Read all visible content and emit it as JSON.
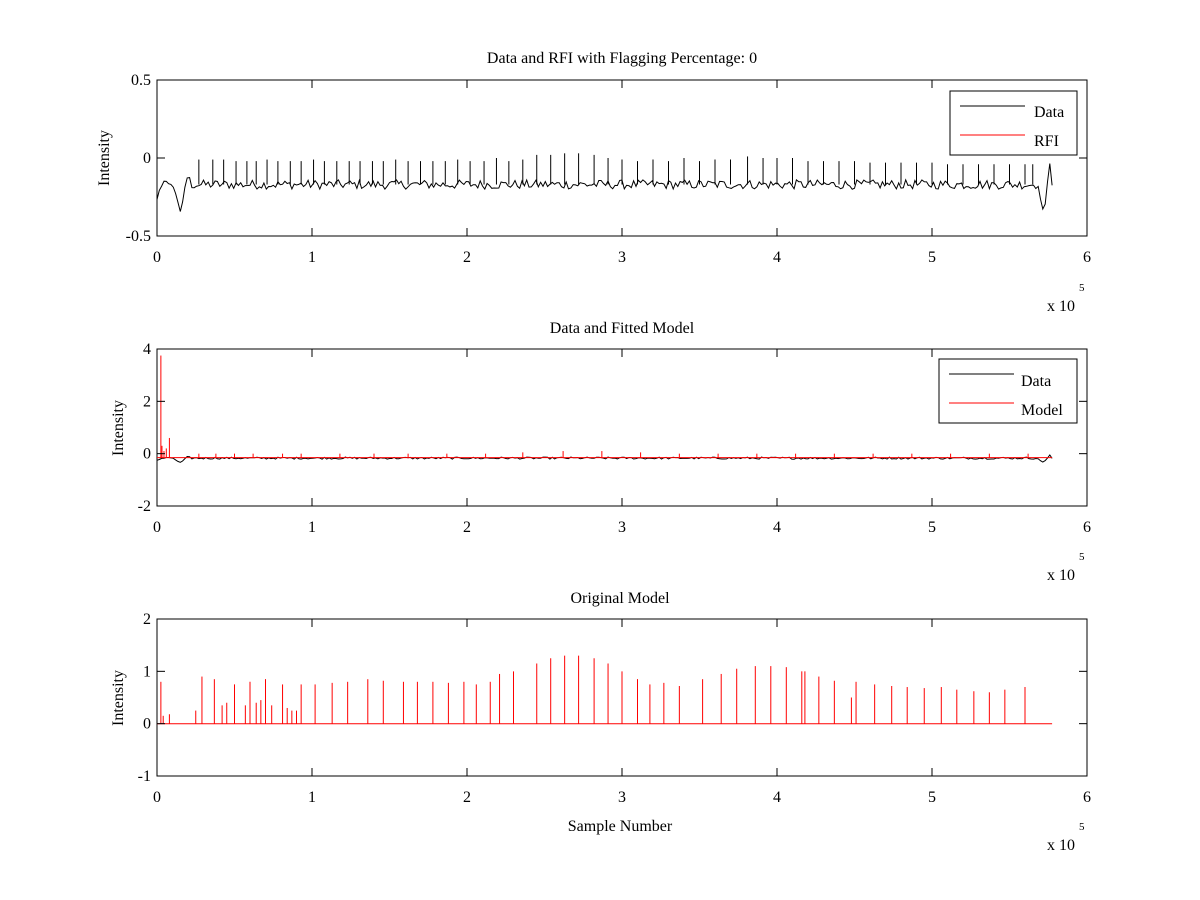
{
  "chart_data": [
    {
      "type": "line",
      "title": "Data and RFI with Flagging Percentage: 0",
      "xlabel": "",
      "ylabel": "Intensity",
      "xlim": [
        0,
        600000
      ],
      "ylim": [
        -0.5,
        0.5
      ],
      "xticks": [
        0,
        1,
        2,
        3,
        4,
        5,
        6
      ],
      "yticks": [
        -0.5,
        0,
        0.5
      ],
      "x_multiplier_base": "x 10",
      "x_multiplier_exp": "5",
      "legend": "top-right",
      "series": [
        {
          "name": "Data",
          "color": "#000000",
          "baseline": -0.17,
          "noise": 0.03,
          "spike_x": [
            27000,
            36000,
            43000,
            51000,
            58000,
            64000,
            71000,
            78000,
            86000,
            93000,
            101000,
            108000,
            116000,
            124000,
            131000,
            139000,
            146000,
            154000,
            162000,
            170000,
            178000,
            186000,
            194000,
            202000,
            211000,
            219000,
            227000,
            236000,
            245000,
            254000,
            263000,
            272000,
            282000,
            291000,
            300000,
            310000,
            320000,
            330000,
            340000,
            350000,
            360000,
            370000,
            381000,
            391000,
            400000,
            410000,
            420000,
            430000,
            440000,
            450000,
            460000,
            470000,
            480000,
            490000,
            500000,
            510000,
            520000,
            530000,
            540000,
            550000,
            560000,
            565000
          ],
          "spike_y": [
            -0.01,
            -0.01,
            -0.01,
            -0.02,
            -0.02,
            -0.02,
            -0.01,
            -0.02,
            -0.02,
            -0.02,
            -0.01,
            -0.02,
            -0.02,
            -0.02,
            -0.02,
            -0.02,
            -0.02,
            -0.01,
            -0.02,
            -0.02,
            -0.02,
            -0.02,
            -0.01,
            -0.02,
            -0.02,
            0.0,
            -0.02,
            -0.01,
            0.02,
            0.02,
            0.03,
            0.03,
            0.02,
            0.0,
            -0.01,
            -0.02,
            -0.01,
            -0.02,
            0.0,
            -0.02,
            -0.01,
            -0.01,
            0.01,
            0.0,
            0.0,
            0.0,
            -0.02,
            -0.02,
            -0.02,
            -0.02,
            -0.03,
            -0.03,
            -0.03,
            -0.03,
            -0.03,
            -0.04,
            -0.04,
            -0.04,
            -0.04,
            -0.04,
            -0.04,
            -0.04
          ],
          "dips": [
            {
              "x": [
                0,
                4000,
                10000,
                15000,
                20000,
                22000
              ],
              "y": [
                -0.26,
                -0.16,
                -0.16,
                -0.35,
                -0.1,
                -0.17
              ]
            },
            {
              "x": [
                568000,
                572000,
                576000,
                578000
              ],
              "y": [
                -0.17,
                -0.36,
                -0.05,
                -0.2
              ]
            }
          ],
          "x_end": 578000
        },
        {
          "name": "RFI",
          "color": "#ff0000"
        }
      ]
    },
    {
      "type": "line",
      "title": "Data and Fitted Model",
      "xlabel": "",
      "ylabel": "Intensity",
      "xlim": [
        0,
        600000
      ],
      "ylim": [
        -2,
        4
      ],
      "xticks": [
        0,
        1,
        2,
        3,
        4,
        5,
        6
      ],
      "yticks": [
        -2,
        0,
        2,
        4
      ],
      "x_multiplier_base": "x 10",
      "x_multiplier_exp": "5",
      "legend": "top-right",
      "series": [
        {
          "name": "Data",
          "color": "#000000",
          "baseline": -0.17,
          "noise": 0.04,
          "dips": [
            {
              "x": [
                0,
                4000,
                10000,
                15000,
                20000,
                22000
              ],
              "y": [
                -0.26,
                -0.16,
                -0.16,
                -0.35,
                -0.1,
                -0.17
              ]
            },
            {
              "x": [
                568000,
                572000,
                576000,
                578000
              ],
              "y": [
                -0.17,
                -0.36,
                -0.05,
                -0.2
              ]
            }
          ],
          "x_end": 578000
        },
        {
          "name": "Model",
          "color": "#ff0000",
          "baseline": -0.15,
          "spike_x": [
            2500,
            3200,
            4500,
            6000,
            8000,
            27000,
            38000,
            50000,
            62000,
            81000,
            93000,
            118000,
            140000,
            162000,
            187000,
            212000,
            236000,
            262000,
            287000,
            312000,
            337000,
            362000,
            387000,
            412000,
            437000,
            462000,
            487000,
            512000,
            537000,
            562000
          ],
          "spike_y": [
            3.75,
            0.3,
            0.1,
            0.2,
            0.6,
            0.0,
            0.0,
            0.0,
            0.0,
            0.0,
            0.0,
            0.0,
            0.0,
            0.0,
            0.0,
            0.0,
            0.05,
            0.1,
            0.1,
            0.05,
            0.0,
            0.0,
            0.0,
            0.0,
            0.0,
            0.0,
            0.0,
            0.0,
            0.0,
            0.0
          ],
          "x_end": 578000
        }
      ]
    },
    {
      "type": "line",
      "title": "Original Model",
      "xlabel": "Sample Number",
      "ylabel": "Intensity",
      "xlim": [
        0,
        600000
      ],
      "ylim": [
        -1,
        2
      ],
      "xticks": [
        0,
        1,
        2,
        3,
        4,
        5,
        6
      ],
      "yticks": [
        -1,
        0,
        1,
        2
      ],
      "x_multiplier_base": "x 10",
      "x_multiplier_exp": "5",
      "series": [
        {
          "name": "Original Model",
          "color": "#ff0000",
          "baseline": 0.0,
          "spike_x": [
            2500,
            4000,
            8000,
            25000,
            29000,
            37000,
            42000,
            45000,
            50000,
            57000,
            60000,
            64000,
            67000,
            70000,
            74000,
            81000,
            84000,
            87000,
            90000,
            93000,
            102000,
            113000,
            123000,
            136000,
            146000,
            159000,
            168000,
            178000,
            188000,
            198000,
            206000,
            215000,
            221000,
            230000,
            245000,
            254000,
            263000,
            272000,
            282000,
            291000,
            300000,
            310000,
            318000,
            327000,
            337000,
            352000,
            364000,
            374000,
            386000,
            396000,
            406000,
            416000,
            418000,
            427000,
            437000,
            448000,
            451000,
            463000,
            474000,
            484000,
            495000,
            506000,
            516000,
            527000,
            537000,
            547000,
            560000
          ],
          "spike_y": [
            0.8,
            0.15,
            0.18,
            0.25,
            0.9,
            0.85,
            0.35,
            0.4,
            0.75,
            0.35,
            0.8,
            0.4,
            0.45,
            0.85,
            0.35,
            0.75,
            0.3,
            0.25,
            0.25,
            0.75,
            0.75,
            0.78,
            0.8,
            0.85,
            0.82,
            0.8,
            0.8,
            0.8,
            0.78,
            0.8,
            0.75,
            0.8,
            0.95,
            1.0,
            1.15,
            1.25,
            1.3,
            1.3,
            1.25,
            1.15,
            1.0,
            0.85,
            0.75,
            0.78,
            0.72,
            0.85,
            0.95,
            1.05,
            1.1,
            1.1,
            1.08,
            1.0,
            1.0,
            0.9,
            0.82,
            0.5,
            0.8,
            0.75,
            0.72,
            0.7,
            0.68,
            0.7,
            0.65,
            0.62,
            0.6,
            0.65,
            0.7
          ],
          "x_end": 578000
        }
      ]
    }
  ]
}
